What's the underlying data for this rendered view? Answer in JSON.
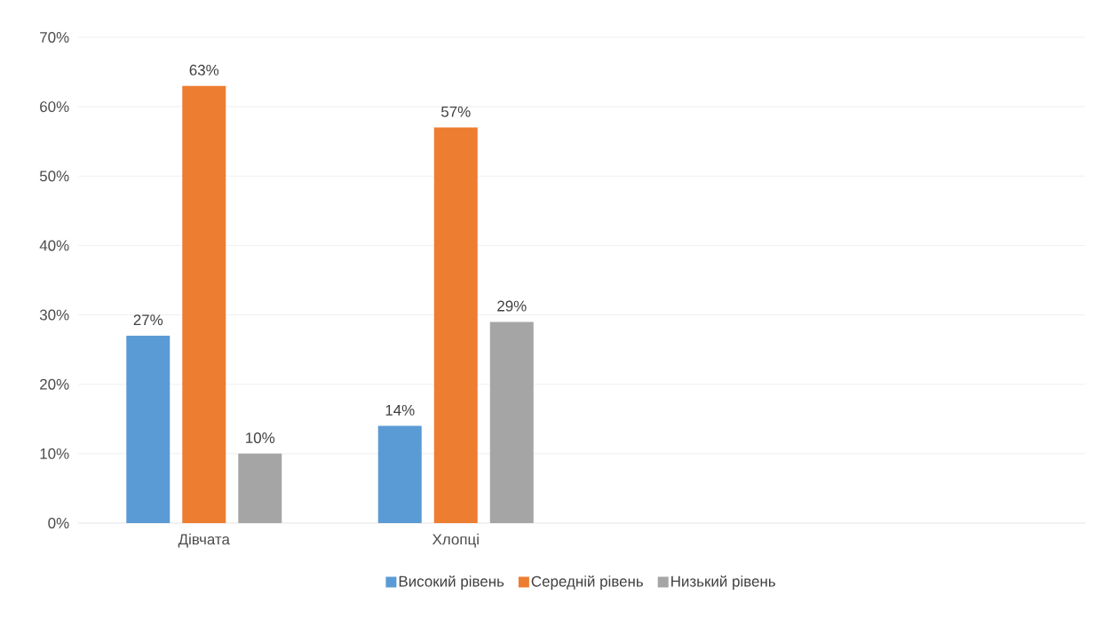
{
  "chart_data": {
    "type": "bar",
    "categories": [
      "Дівчата",
      "Хлопці",
      null,
      null
    ],
    "series": [
      {
        "name": "Високий рівень",
        "color": "#5b9bd5",
        "values": [
          27,
          14,
          null,
          null
        ],
        "value_labels": [
          "27%",
          "14%",
          null,
          null
        ]
      },
      {
        "name": "Середній рівень",
        "color": "#ed7d31",
        "values": [
          63,
          57,
          null,
          null
        ],
        "value_labels": [
          "63%",
          "57%",
          null,
          null
        ]
      },
      {
        "name": "Низький рівень",
        "color": "#a5a5a5",
        "values": [
          10,
          29,
          null,
          null
        ],
        "value_labels": [
          "10%",
          "29%",
          null,
          null
        ]
      }
    ],
    "ylim": [
      0,
      70
    ],
    "yticks": [
      {
        "value": 0,
        "label": "0%"
      },
      {
        "value": 10,
        "label": "10%"
      },
      {
        "value": 20,
        "label": "20%"
      },
      {
        "value": 30,
        "label": "30%"
      },
      {
        "value": 40,
        "label": "40%"
      },
      {
        "value": 50,
        "label": "50%"
      },
      {
        "value": 60,
        "label": "60%"
      },
      {
        "value": 70,
        "label": "70%"
      }
    ],
    "grid": "y",
    "legend": "bottom"
  }
}
